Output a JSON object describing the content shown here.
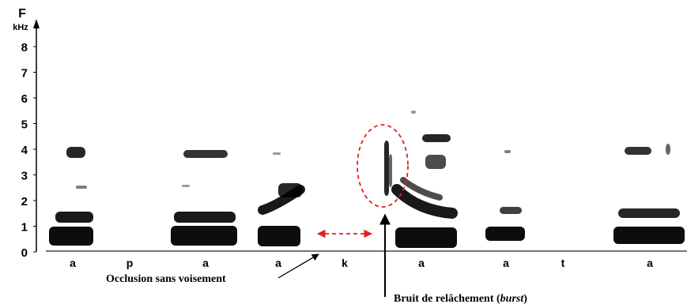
{
  "axis": {
    "label": "F",
    "unit": "kHz",
    "ticks": [
      "0",
      "1",
      "2",
      "3",
      "4",
      "5",
      "6",
      "7",
      "8"
    ]
  },
  "segments": [
    "a",
    "p",
    "a",
    "a",
    "k",
    "a",
    "a",
    "t",
    "a"
  ],
  "annotations": {
    "occlusion": "Occlusion sans voisement",
    "burst_prefix": "Bruit de relâchement (",
    "burst_italic": "burst",
    "burst_suffix": ")"
  },
  "colors": {
    "ink": "#000000",
    "highlight": "#e02020"
  }
}
